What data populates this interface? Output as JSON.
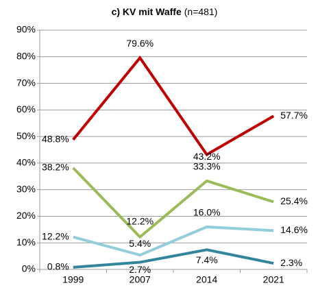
{
  "chart_data": {
    "type": "line",
    "title": "c) KV  mit Waffe",
    "subtitle": "(n=481)",
    "categories": [
      "1999",
      "2007",
      "2014",
      "2021"
    ],
    "series": [
      {
        "color": "#c00000",
        "values": [
          48.8,
          79.6,
          43.2,
          57.7
        ],
        "value_labels": [
          "48.8%",
          "79.6%",
          "43.2%",
          "57.7%"
        ]
      },
      {
        "color": "#9bbb59",
        "values": [
          38.2,
          12.2,
          33.3,
          25.4
        ],
        "value_labels": [
          "38.2%",
          "12.2%",
          "33.3%",
          "25.4%"
        ]
      },
      {
        "color": "#92cddc",
        "values": [
          12.2,
          5.4,
          16.0,
          14.6
        ],
        "value_labels": [
          "12.2%",
          "5.4%",
          "16.0%",
          "14.6%"
        ]
      },
      {
        "color": "#31859c",
        "values": [
          0.8,
          2.7,
          7.4,
          2.3
        ],
        "value_labels": [
          "0.8%",
          "2.7%",
          "7.4%",
          "2.3%"
        ]
      }
    ],
    "ylim": [
      0,
      90
    ],
    "yticks": [
      {
        "value": 0,
        "label": "0%"
      },
      {
        "value": 10,
        "label": "10%"
      },
      {
        "value": 20,
        "label": "20%"
      },
      {
        "value": 30,
        "label": "30%"
      },
      {
        "value": 40,
        "label": "40%"
      },
      {
        "value": 50,
        "label": "50%"
      },
      {
        "value": 60,
        "label": "60%"
      },
      {
        "value": 70,
        "label": "70%"
      },
      {
        "value": 80,
        "label": "80%"
      },
      {
        "value": 90,
        "label": "90%"
      }
    ],
    "grid": true
  }
}
